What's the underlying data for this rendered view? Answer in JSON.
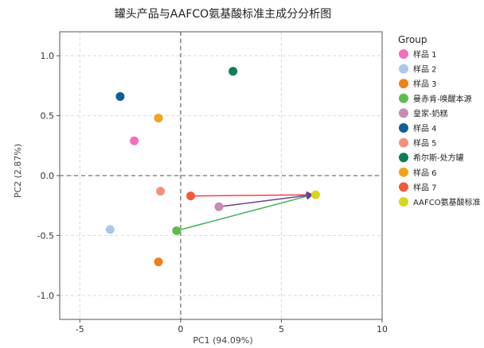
{
  "chart_data": {
    "type": "scatter",
    "title": "罐头产品与AAFCO氨基酸标准主成分分析图",
    "xlabel": "PC1 (94.09%)",
    "ylabel": "PC2 (2.87%)",
    "xlim": [
      -6,
      10
    ],
    "ylim": [
      -1.2,
      1.2
    ],
    "x_ticks": [
      -5,
      0,
      5,
      10
    ],
    "y_ticks": [
      -1.0,
      -0.5,
      0.0,
      0.5,
      1.0
    ],
    "x_tick_labels": [
      "-5",
      "0",
      "5",
      "10"
    ],
    "y_tick_labels": [
      "-1.0",
      "-0.5",
      "0.0",
      "0.5",
      "1.0"
    ],
    "grid": true,
    "reference_lines": {
      "x": 0,
      "y": 0
    },
    "legend": {
      "title": "Group",
      "placement": "right"
    },
    "series": [
      {
        "name": "样品 1",
        "color": "#f06fbf",
        "x": -2.3,
        "y": 0.29
      },
      {
        "name": "样品 2",
        "color": "#a8c8ea",
        "x": -3.5,
        "y": -0.45
      },
      {
        "name": "样品 3",
        "color": "#f07f1a",
        "x": -1.1,
        "y": -0.72
      },
      {
        "name": "曼赤肯-唤醒本源",
        "color": "#5cbd4c",
        "x": -0.2,
        "y": -0.46
      },
      {
        "name": "皇家-奶糕",
        "color": "#c98bb0",
        "x": 1.9,
        "y": -0.26
      },
      {
        "name": "样品 4",
        "color": "#0f5f94",
        "x": -3.0,
        "y": 0.66
      },
      {
        "name": "样品 5",
        "color": "#f5917a",
        "x": -1.0,
        "y": -0.13
      },
      {
        "name": "希尔斯-处方罐",
        "color": "#0d7d55",
        "x": 2.6,
        "y": 0.87
      },
      {
        "name": "样品 6",
        "color": "#f3a21b",
        "x": -1.1,
        "y": 0.48
      },
      {
        "name": "样品 7",
        "color": "#ef5a3c",
        "x": 0.5,
        "y": -0.17
      },
      {
        "name": "AAFCO氨基酸标准",
        "color": "#d9d61a",
        "x": 6.7,
        "y": -0.16
      }
    ],
    "arrows": [
      {
        "from": [
          6.7,
          -0.16
        ],
        "to": [
          0.5,
          -0.17
        ],
        "color": "#ef3f4f"
      },
      {
        "from": [
          6.7,
          -0.16
        ],
        "to": [
          1.9,
          -0.26
        ],
        "color": "#6d3d9a"
      },
      {
        "from": [
          6.7,
          -0.16
        ],
        "to": [
          -0.2,
          -0.46
        ],
        "color": "#3fb05a"
      }
    ]
  }
}
